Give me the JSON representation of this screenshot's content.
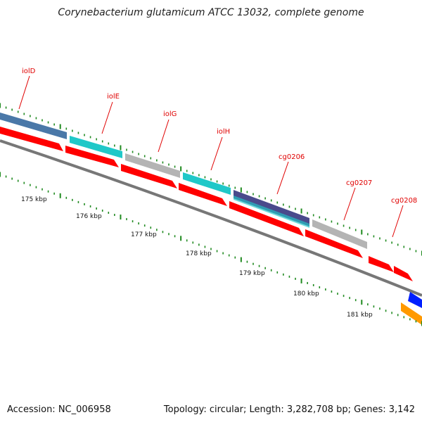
{
  "title": "Corynebacterium glutamicum ATCC 13032, complete genome",
  "footer": {
    "accession": "Accession: NC_006958",
    "topology": "Topology: circular; Length: 3,282,708 bp; Genes: 3,142"
  },
  "colors": {
    "cds_red": "#ff0000",
    "backbone": "#777777",
    "tick_green": "#1f8a1f",
    "label_red": "#e00000",
    "steelblue": "#4a78a8",
    "cyan": "#20c8c8",
    "gray": "#b4b4b4",
    "navy_purple": "#4a4a8c",
    "blue": "#0020ff",
    "orange": "#ff9900"
  },
  "gene_labels": [
    {
      "id": "iold",
      "label": "iolD"
    },
    {
      "id": "iole",
      "label": "iolE"
    },
    {
      "id": "iolg",
      "label": "iolG"
    },
    {
      "id": "iolh",
      "label": "iolH"
    },
    {
      "id": "cg0206",
      "label": "cg0206"
    },
    {
      "id": "cg0207",
      "label": "cg0207"
    },
    {
      "id": "cg0208",
      "label": "cg0208"
    }
  ],
  "kbp_labels": [
    "175 kbp",
    "176 kbp",
    "177 kbp",
    "178 kbp",
    "179 kbp",
    "180 kbp",
    "181 kbp"
  ]
}
